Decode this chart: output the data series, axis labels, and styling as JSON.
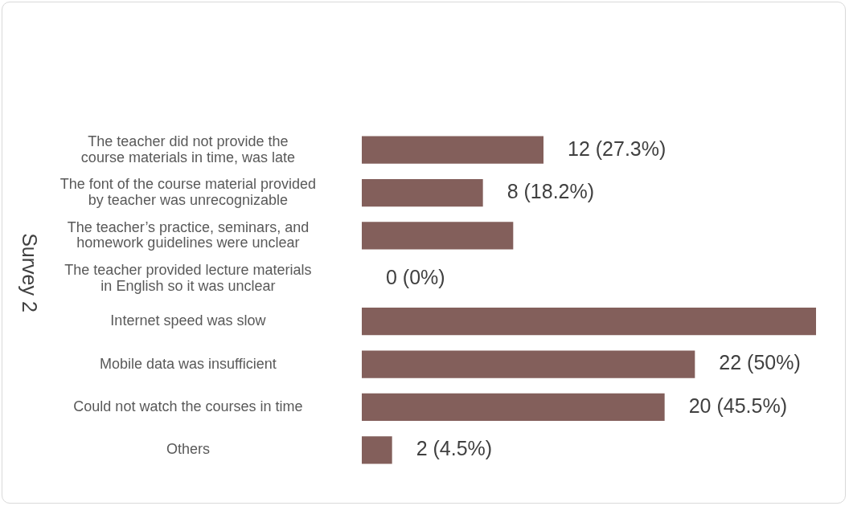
{
  "chart_data": {
    "type": "bar",
    "orientation": "horizontal",
    "ylabel": "Survey 2",
    "categories": [
      "The teacher did not provide the\ncourse materials in time, was late",
      "The font of the course material provided\nby teacher was unrecognizable",
      "The teacher’s practice, seminars, and\nhomework guidelines were unclear",
      "The teacher provided lecture materials\nin English so it was unclear",
      "Internet speed was slow",
      "Mobile data was insufficient",
      "Could not watch the courses in time",
      "Others"
    ],
    "values": [
      12,
      8,
      10,
      0,
      30,
      22,
      20,
      2
    ],
    "value_labels": [
      "12 (27.3%)",
      "8 (18.2%)",
      null,
      "0 (0%)",
      null,
      "22 (50%)",
      "20 (45.5%)",
      "2 (4.5%)"
    ],
    "color": "#835f5b",
    "tick_labels": "y"
  }
}
